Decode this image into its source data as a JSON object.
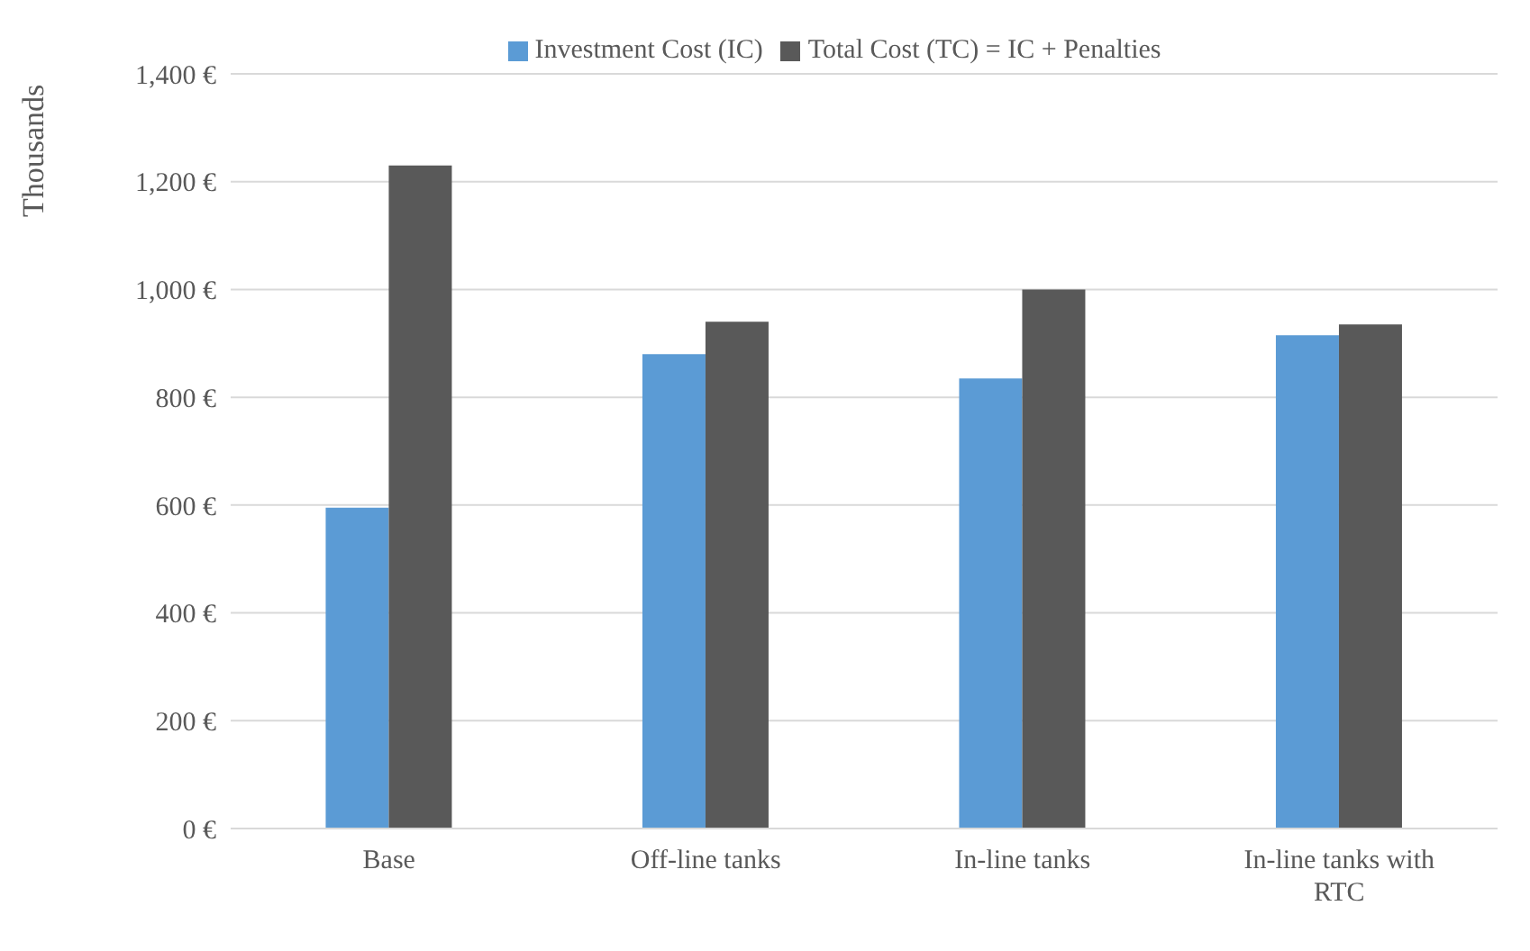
{
  "chart_data": {
    "type": "bar",
    "ylabel": "Thousands",
    "categories": [
      "Base",
      "Off-line tanks",
      "In-line tanks",
      "In-line tanks with RTC"
    ],
    "series": [
      {
        "name": "Investment Cost (IC)",
        "color": "#5b9bd5",
        "values": [
          595,
          880,
          835,
          915
        ]
      },
      {
        "name": "Total Cost (TC) = IC + Penalties",
        "color": "#595959",
        "values": [
          1230,
          940,
          1000,
          935
        ]
      }
    ],
    "ylim": [
      0,
      1400
    ],
    "yticks": [
      {
        "value": 0,
        "label": "0 €"
      },
      {
        "value": 200,
        "label": "200 €"
      },
      {
        "value": 400,
        "label": "400 €"
      },
      {
        "value": 600,
        "label": "600 €"
      },
      {
        "value": 800,
        "label": "800 €"
      },
      {
        "value": 1000,
        "label": "1,000 €"
      },
      {
        "value": 1200,
        "label": "1,200 €"
      },
      {
        "value": 1400,
        "label": "1,400 €"
      }
    ],
    "grid": "y",
    "legend": "top"
  }
}
